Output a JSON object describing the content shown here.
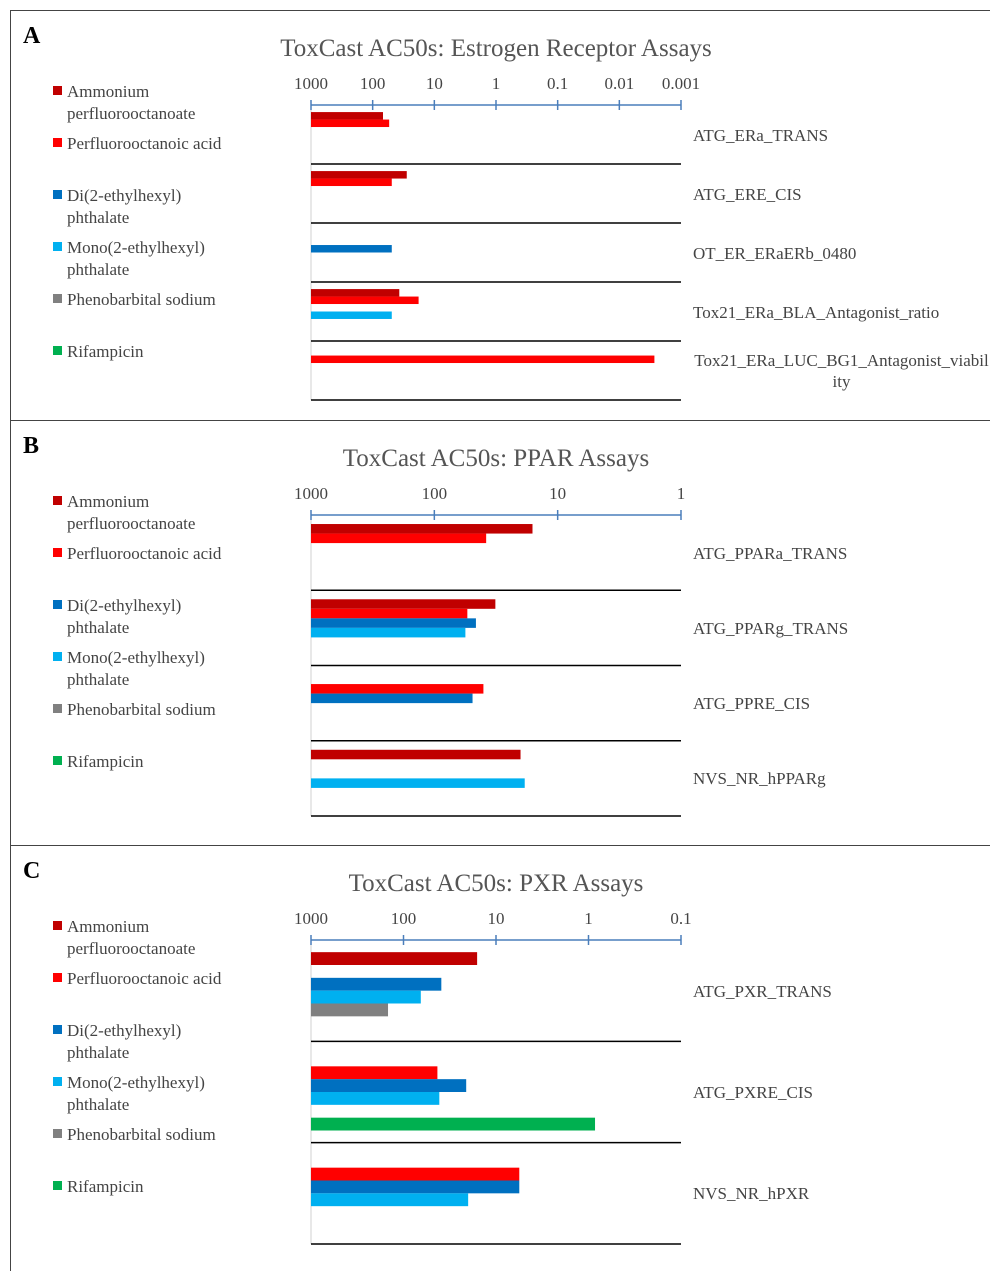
{
  "chart_data": [
    {
      "type": "bar",
      "label": "A",
      "title": "ToxCast AC50s: Estrogen Receptor Assays",
      "orientation": "horizontal",
      "log": true,
      "xlim": [
        1000,
        0.001
      ],
      "xticks": [
        1000,
        100,
        10,
        1,
        0.1,
        0.01,
        0.001
      ],
      "categories": [
        "ATG_ERa_TRANS",
        "ATG_ERE_CIS",
        "OT_ER_ERaERb_0480",
        "Tox21_ERa_BLA_Antagonist_ratio",
        "Tox21_ERa_LUC_BG1_Antagonist_viability"
      ],
      "series": [
        {
          "name": "Ammonium perfluorooctanoate",
          "color": "#c00000",
          "values": [
            68,
            28,
            null,
            37,
            null
          ]
        },
        {
          "name": "Perfluorooctanoic acid",
          "color": "#ff0000",
          "values": [
            54,
            49,
            null,
            18,
            0.0027
          ]
        },
        {
          "name": "Di(2-ethylhexyl) phthalate",
          "color": "#0070c0",
          "values": [
            null,
            null,
            49,
            null,
            null
          ]
        },
        {
          "name": "Mono(2-ethylhexyl) phthalate",
          "color": "#00b0f0",
          "values": [
            null,
            null,
            null,
            49,
            null
          ]
        },
        {
          "name": "Phenobarbital sodium",
          "color": "#808080",
          "values": [
            null,
            null,
            null,
            null,
            null
          ]
        },
        {
          "name": "Rifampicin",
          "color": "#00b050",
          "values": [
            null,
            null,
            null,
            null,
            null
          ]
        }
      ]
    },
    {
      "type": "bar",
      "label": "B",
      "title": "ToxCast AC50s: PPAR Assays",
      "orientation": "horizontal",
      "log": true,
      "xlim": [
        1000,
        1
      ],
      "xticks": [
        1000,
        100,
        10,
        1
      ],
      "categories": [
        "ATG_PPARa_TRANS",
        "ATG_PPARg_TRANS",
        "ATG_PPRE_CIS",
        "NVS_NR_hPPARg"
      ],
      "series": [
        {
          "name": "Ammonium perfluorooctanoate",
          "color": "#c00000",
          "values": [
            16,
            32,
            null,
            20
          ]
        },
        {
          "name": "Perfluorooctanoic acid",
          "color": "#ff0000",
          "values": [
            38,
            54,
            40,
            null
          ]
        },
        {
          "name": "Di(2-ethylhexyl) phthalate",
          "color": "#0070c0",
          "values": [
            null,
            46,
            49,
            null
          ]
        },
        {
          "name": "Mono(2-ethylhexyl) phthalate",
          "color": "#00b0f0",
          "values": [
            null,
            56,
            null,
            18.5
          ]
        },
        {
          "name": "Phenobarbital sodium",
          "color": "#808080",
          "values": [
            null,
            null,
            null,
            null
          ]
        },
        {
          "name": "Rifampicin",
          "color": "#00b050",
          "values": [
            null,
            null,
            null,
            null
          ]
        }
      ]
    },
    {
      "type": "bar",
      "label": "C",
      "title": "ToxCast AC50s: PXR Assays",
      "orientation": "horizontal",
      "log": true,
      "xlim": [
        1000,
        0.1
      ],
      "xticks": [
        1000,
        100,
        10,
        1,
        0.1
      ],
      "categories": [
        "ATG_PXR_TRANS",
        "ATG_PXRE_CIS",
        "NVS_NR_hPXR"
      ],
      "series": [
        {
          "name": "Ammonium perfluorooctanoate",
          "color": "#c00000",
          "values": [
            16,
            null,
            null
          ]
        },
        {
          "name": "Perfluorooctanoic acid",
          "color": "#ff0000",
          "values": [
            null,
            43,
            5.6
          ]
        },
        {
          "name": "Di(2-ethylhexyl) phthalate",
          "color": "#0070c0",
          "values": [
            39,
            21,
            5.6
          ]
        },
        {
          "name": "Mono(2-ethylhexyl) phthalate",
          "color": "#00b0f0",
          "values": [
            65,
            41,
            20
          ]
        },
        {
          "name": "Phenobarbital sodium",
          "color": "#808080",
          "values": [
            147,
            null,
            null
          ]
        },
        {
          "name": "Rifampicin",
          "color": "#00b050",
          "values": [
            null,
            0.85,
            null
          ]
        }
      ]
    }
  ]
}
